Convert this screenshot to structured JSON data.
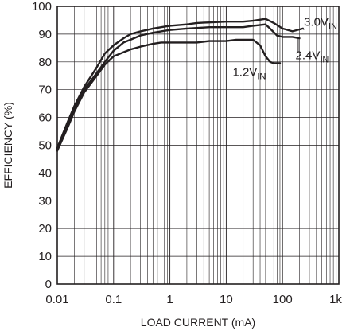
{
  "chart_data": {
    "type": "line",
    "title": "",
    "xlabel": "LOAD CURRENT (mA)",
    "ylabel": "EFFICIENCY (%)",
    "x_scale": "log",
    "xlim": [
      0.01,
      1000
    ],
    "ylim": [
      0,
      100
    ],
    "grid": true,
    "line_color": "#231f20",
    "x_ticks": [
      {
        "value": 0.01,
        "label": "0.01"
      },
      {
        "value": 0.1,
        "label": "0.1"
      },
      {
        "value": 1,
        "label": "1"
      },
      {
        "value": 10,
        "label": "10"
      },
      {
        "value": 100,
        "label": "100"
      },
      {
        "value": 1000,
        "label": "1k"
      }
    ],
    "y_ticks": [
      {
        "value": 0,
        "label": "0"
      },
      {
        "value": 10,
        "label": "10"
      },
      {
        "value": 20,
        "label": "20"
      },
      {
        "value": 30,
        "label": "30"
      },
      {
        "value": 40,
        "label": "40"
      },
      {
        "value": 50,
        "label": "50"
      },
      {
        "value": 60,
        "label": "60"
      },
      {
        "value": 70,
        "label": "70"
      },
      {
        "value": 80,
        "label": "80"
      },
      {
        "value": 90,
        "label": "90"
      },
      {
        "value": 100,
        "label": "100"
      }
    ],
    "series": [
      {
        "name": "3.0V",
        "subscript": "IN",
        "x": [
          0.01,
          0.015,
          0.02,
          0.03,
          0.05,
          0.07,
          0.1,
          0.15,
          0.2,
          0.3,
          0.5,
          0.7,
          1,
          2,
          3,
          5,
          10,
          20,
          30,
          50,
          70,
          100,
          150,
          230
        ],
        "y": [
          49,
          58,
          64,
          71,
          78,
          83,
          86,
          88.5,
          90,
          91,
          92,
          92.5,
          93,
          93.5,
          94,
          94.2,
          94.5,
          94.5,
          94.8,
          95.5,
          94,
          92,
          91,
          92
        ]
      },
      {
        "name": "2.4V",
        "subscript": "IN",
        "x": [
          0.01,
          0.015,
          0.02,
          0.03,
          0.05,
          0.07,
          0.1,
          0.15,
          0.2,
          0.3,
          0.5,
          0.7,
          1,
          2,
          3,
          5,
          10,
          20,
          30,
          50,
          60,
          80,
          100,
          150,
          200
        ],
        "y": [
          48.5,
          57,
          63,
          70,
          76,
          80,
          84,
          87,
          88,
          89.5,
          90.5,
          91,
          91.5,
          92,
          92.2,
          92.5,
          92.5,
          92.5,
          93,
          93.5,
          92,
          89.5,
          89,
          89,
          88.5
        ]
      },
      {
        "name": "1.2V",
        "subscript": "IN",
        "x": [
          0.01,
          0.015,
          0.02,
          0.03,
          0.05,
          0.07,
          0.1,
          0.15,
          0.2,
          0.3,
          0.5,
          0.7,
          1,
          2,
          3,
          5,
          10,
          15,
          20,
          30,
          40,
          50,
          60,
          70,
          90
        ],
        "y": [
          48,
          56,
          62,
          69,
          75,
          79,
          82,
          83.5,
          84.5,
          85.5,
          86.5,
          87,
          87,
          87,
          87,
          87.5,
          87.5,
          88,
          88,
          88,
          86,
          82,
          80,
          79.5,
          79.5
        ]
      }
    ],
    "series_labels": [
      {
        "series": 0,
        "name": "3.0V",
        "subscript": "IN",
        "at": [
          240,
          93
        ],
        "connector": [
          [
            238,
            92
          ],
          [
            238,
            91.5
          ]
        ]
      },
      {
        "series": 1,
        "name": "2.4V",
        "subscript": "IN",
        "at": [
          170,
          81
        ],
        "connector": [
          [
            190,
            83.5
          ],
          [
            190,
            88.5
          ]
        ]
      },
      {
        "series": 2,
        "name": "1.2V",
        "subscript": "IN",
        "at": [
          13,
          75
        ],
        "connector": [
          [
            60,
            77.5
          ],
          [
            60,
            79.5
          ]
        ]
      }
    ]
  }
}
